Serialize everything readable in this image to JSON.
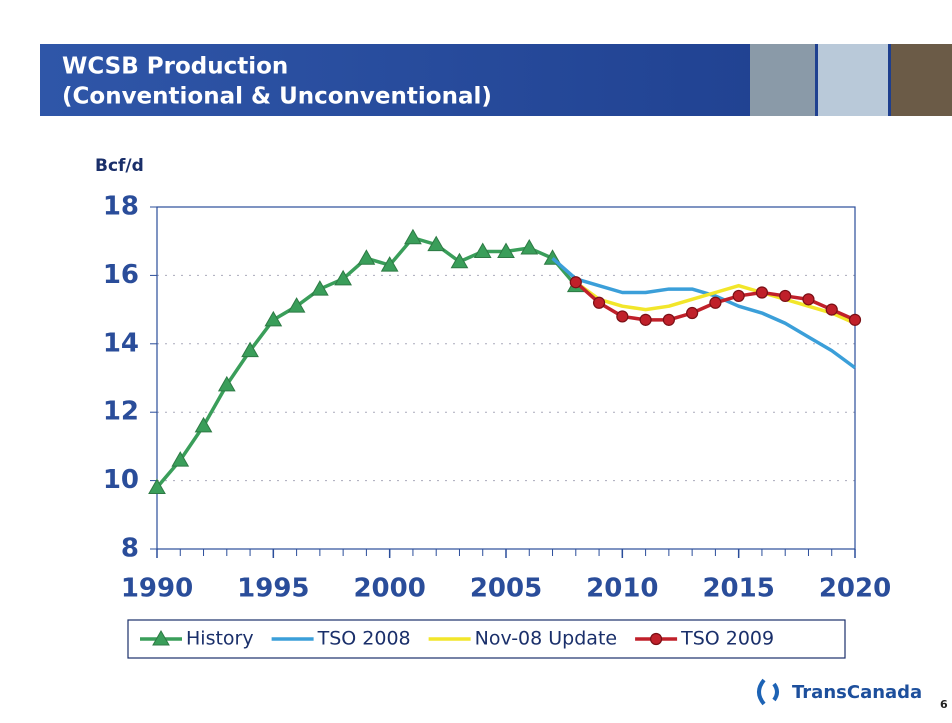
{
  "title": "WCSB Production",
  "subtitle": "(Conventional & Unconventional)",
  "logo": "TransCanada",
  "page_number": "6",
  "chart_data": {
    "type": "line",
    "ylabel": "Bcf/d",
    "x": [
      1990,
      1991,
      1992,
      1993,
      1994,
      1995,
      1996,
      1997,
      1998,
      1999,
      2000,
      2001,
      2002,
      2003,
      2004,
      2005,
      2006,
      2007,
      2008,
      2009,
      2010,
      2011,
      2012,
      2013,
      2014,
      2015,
      2016,
      2017,
      2018,
      2019,
      2020
    ],
    "xlim": [
      1990,
      2020
    ],
    "xticks": [
      1990,
      1995,
      2000,
      2005,
      2010,
      2015,
      2020
    ],
    "ylim": [
      8,
      18
    ],
    "yticks": [
      8,
      10,
      12,
      14,
      16,
      18
    ],
    "grid": true,
    "series": [
      {
        "name": "History",
        "color": "#3a9e5a",
        "marker": "triangle",
        "values": [
          9.8,
          10.6,
          11.6,
          12.8,
          13.8,
          14.7,
          15.1,
          15.6,
          15.9,
          16.5,
          16.3,
          17.1,
          16.9,
          16.4,
          16.7,
          16.7,
          16.8,
          16.5,
          15.7,
          null,
          null,
          null,
          null,
          null,
          null,
          null,
          null,
          null,
          null,
          null,
          null
        ]
      },
      {
        "name": "TSO 2008",
        "color": "#3b9fd9",
        "marker": "none",
        "values": [
          null,
          null,
          null,
          null,
          null,
          null,
          null,
          null,
          null,
          null,
          null,
          null,
          null,
          null,
          null,
          null,
          null,
          16.5,
          15.9,
          15.7,
          15.5,
          15.5,
          15.6,
          15.6,
          15.4,
          15.1,
          14.9,
          14.6,
          14.2,
          13.8,
          13.3
        ]
      },
      {
        "name": "Nov-08 Update",
        "color": "#f2e62a",
        "marker": "none",
        "values": [
          null,
          null,
          null,
          null,
          null,
          null,
          null,
          null,
          null,
          null,
          null,
          null,
          null,
          null,
          null,
          null,
          null,
          null,
          15.8,
          15.3,
          15.1,
          15.0,
          15.1,
          15.3,
          15.5,
          15.7,
          15.5,
          15.3,
          15.1,
          14.9,
          14.6
        ]
      },
      {
        "name": "TSO 2009",
        "color": "#c0202a",
        "marker": "circle",
        "values": [
          null,
          null,
          null,
          null,
          null,
          null,
          null,
          null,
          null,
          null,
          null,
          null,
          null,
          null,
          null,
          null,
          null,
          null,
          15.8,
          15.2,
          14.8,
          14.7,
          14.7,
          14.9,
          15.2,
          15.4,
          15.5,
          15.4,
          15.3,
          15.0,
          14.7
        ]
      }
    ]
  }
}
